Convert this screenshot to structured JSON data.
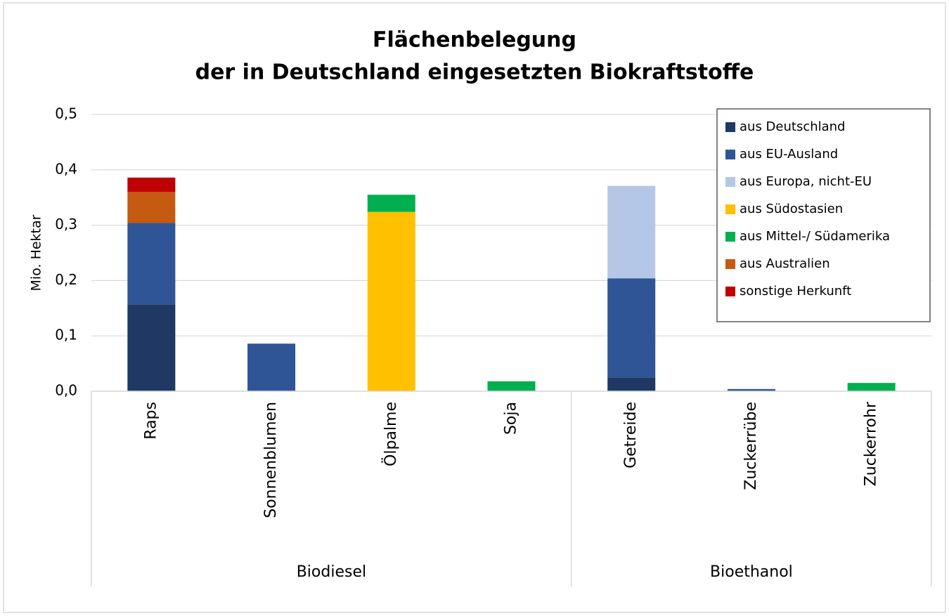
{
  "chart_data": {
    "type": "stacked-bar",
    "title": [
      "Flächenbelegung",
      "der in Deutschland eingesetzten Biokraftstoffe"
    ],
    "y_label": "Mio. Hektar",
    "groups": [
      {
        "name": "Biodiesel",
        "categories": [
          "Raps",
          "Sonnenblumen",
          "Ölpalme",
          "Soja"
        ]
      },
      {
        "name": "Bioethanol",
        "categories": [
          "Getreide",
          "Zuckerrübe",
          "Zuckerrohr"
        ]
      }
    ],
    "series": [
      {
        "name": "aus Deutschland",
        "color": "#1f3864",
        "values": [
          0.157,
          null,
          null,
          null,
          0.025,
          null,
          null
        ]
      },
      {
        "name": "aus EU-Ausland",
        "color": "#2f5597",
        "values": [
          0.147,
          0.086,
          null,
          null,
          0.179,
          0.004,
          null
        ]
      },
      {
        "name": "aus Europa, nicht-EU",
        "color": "#b4c7e7",
        "values": [
          null,
          null,
          null,
          null,
          0.167,
          null,
          null
        ]
      },
      {
        "name": "aus Südostasien",
        "color": "#ffc000",
        "values": [
          null,
          null,
          0.324,
          null,
          null,
          null,
          null
        ]
      },
      {
        "name": "aus Mittel-/ Südamerika",
        "color": "#00b050",
        "values": [
          null,
          null,
          0.031,
          0.018,
          null,
          null,
          0.015
        ]
      },
      {
        "name": "aus Australien",
        "color": "#c55a11",
        "values": [
          0.056,
          null,
          null,
          null,
          null,
          null,
          null
        ]
      },
      {
        "name": "sonstige Herkunft",
        "color": "#c00000",
        "values": [
          0.026,
          null,
          null,
          null,
          null,
          null,
          null
        ]
      }
    ],
    "ylim": [
      0,
      0.5
    ],
    "yticks": [
      {
        "value": 0,
        "label": "0,0"
      },
      {
        "value": 0.1,
        "label": "0,1"
      },
      {
        "value": 0.2,
        "label": "0,2"
      },
      {
        "value": 0.3,
        "label": "0,3"
      },
      {
        "value": 0.4,
        "label": "0,4"
      },
      {
        "value": 0.5,
        "label": "0,5"
      }
    ],
    "grid": true,
    "legend": "upper right"
  }
}
